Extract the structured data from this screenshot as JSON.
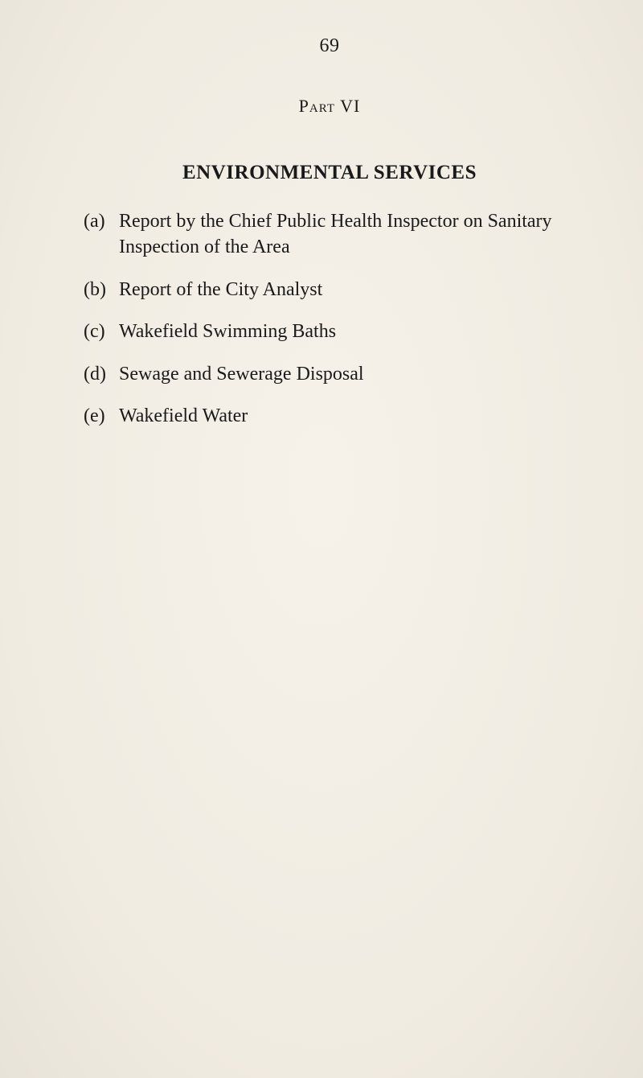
{
  "page_number": "69",
  "part_label": "Part VI",
  "section_title": "ENVIRONMENTAL SERVICES",
  "items": [
    {
      "label": "(a)",
      "text": "Report by the Chief Public Health Inspector on Sanitary Inspection of the Area"
    },
    {
      "label": "(b)",
      "text": "Report of the City Analyst"
    },
    {
      "label": "(c)",
      "text": "Wakefield Swimming Baths"
    },
    {
      "label": "(d)",
      "text": "Sewage and Sewerage Disposal"
    },
    {
      "label": "(e)",
      "text": "Wakefield Water"
    }
  ]
}
